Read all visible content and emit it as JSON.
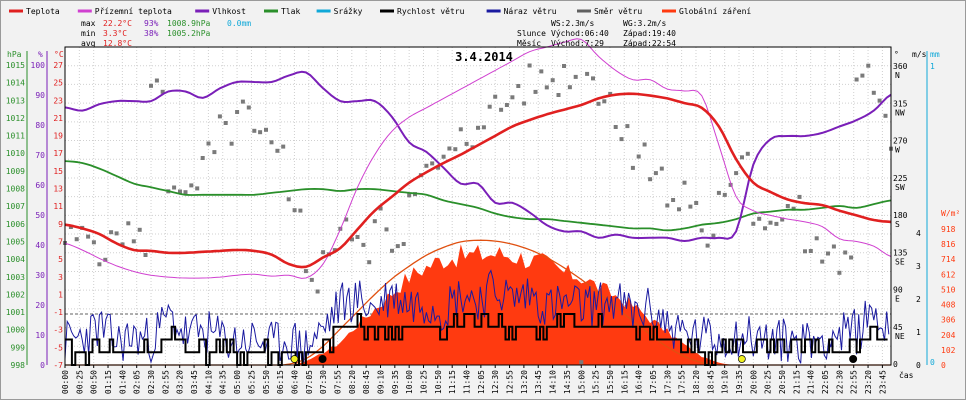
{
  "chart_data": {
    "type": "line",
    "title": "3.4.2014",
    "legend": [
      {
        "label": "Teplota",
        "color": "#e02020"
      },
      {
        "label": "Přízemní teplota",
        "color": "#d040d0"
      },
      {
        "label": "Vlhkost",
        "color": "#7a1fb8"
      },
      {
        "label": "Tlak",
        "color": "#2a8f2a"
      },
      {
        "label": "Srážky",
        "color": "#10a8d8"
      },
      {
        "label": "Rychlost větru",
        "color": "#000000"
      },
      {
        "label": "Náraz větru",
        "color": "#1a1aa0"
      },
      {
        "label": "Směr větru",
        "color": "#606060"
      },
      {
        "label": "Globální záření",
        "color": "#ff3a10"
      }
    ],
    "stats": {
      "max": {
        "label": "max",
        "temp": "22.2°C",
        "hum": "93%",
        "press": "1008.9hPa",
        "rain": "0.0mm"
      },
      "min": {
        "label": "min",
        "temp": "3.3°C",
        "hum": "38%",
        "press": "1005.2hPa"
      },
      "avg": {
        "label": "avg",
        "temp": "12.8°C"
      }
    },
    "info": {
      "ws": "WS:2.3m/s",
      "wg": "WG:3.2m/s",
      "sun_label": "Slunce",
      "sun_rise": "Východ:06:40",
      "sun_set": "Západ:19:40",
      "moon_label": "Měsíc",
      "moon_rise": "Východ:7:29",
      "moon_set": "Západ:22:54"
    },
    "axes": {
      "hpa": {
        "unit": "hPa",
        "ticks": [
          "1015",
          "1014",
          "1013",
          "1012",
          "1011",
          "1010",
          "1009",
          "1008",
          "1007",
          "1006",
          "1005",
          "1004",
          "1003",
          "1002",
          "1001",
          "1000",
          "999",
          "998"
        ]
      },
      "pct": {
        "unit": "%",
        "ticks": [
          "100",
          "90",
          "80",
          "70",
          "60",
          "50",
          "40",
          "30",
          "20",
          "10",
          "0"
        ]
      },
      "temp": {
        "unit": "°C",
        "ticks": [
          "27",
          "25",
          "23",
          "21",
          "19",
          "17",
          "15",
          "13",
          "11",
          "9",
          "7",
          "5",
          "3",
          "1",
          "-1",
          "-3",
          "-5",
          "-7"
        ]
      },
      "dir": {
        "unit": "°",
        "ticks": [
          {
            "deg": "360",
            "dir": "N"
          },
          {
            "deg": "315",
            "dir": "NW"
          },
          {
            "deg": "270",
            "dir": "W"
          },
          {
            "deg": "225",
            "dir": "SW"
          },
          {
            "deg": "180",
            "dir": "S"
          },
          {
            "deg": "135",
            "dir": "SE"
          },
          {
            "deg": "90",
            "dir": "E"
          },
          {
            "deg": "45",
            "dir": "NE"
          },
          {
            "deg": "0",
            "dir": ""
          }
        ]
      },
      "wind": {
        "unit": "m/s",
        "ticks": [
          "4",
          "3",
          "2",
          "1",
          "0"
        ]
      },
      "rain": {
        "unit": "mm",
        "ticks": [
          "1",
          "0"
        ]
      },
      "rad": {
        "unit": "W/m²",
        "ticks": [
          "918",
          "816",
          "714",
          "612",
          "510",
          "408",
          "306",
          "204",
          "102",
          "0"
        ]
      },
      "x_unit": "čas",
      "x_ticks": [
        "00:00",
        "00:25",
        "00:50",
        "01:15",
        "01:40",
        "02:05",
        "02:30",
        "02:55",
        "03:20",
        "03:45",
        "04:10",
        "04:35",
        "05:00",
        "05:25",
        "05:50",
        "06:15",
        "06:40",
        "07:05",
        "07:30",
        "07:55",
        "08:20",
        "08:45",
        "09:10",
        "09:35",
        "10:00",
        "10:25",
        "10:50",
        "11:15",
        "11:40",
        "12:05",
        "12:30",
        "12:55",
        "13:20",
        "13:45",
        "14:10",
        "14:35",
        "15:00",
        "15:25",
        "15:50",
        "16:15",
        "16:40",
        "17:05",
        "17:30",
        "17:55",
        "18:20",
        "18:45",
        "19:10",
        "19:35",
        "20:00",
        "20:25",
        "20:50",
        "21:15",
        "21:40",
        "22:05",
        "22:30",
        "22:55",
        "23:20",
        "23:45"
      ]
    },
    "series": {
      "time_h": [
        0,
        0.5,
        1,
        1.5,
        2,
        2.5,
        3,
        3.5,
        4,
        4.5,
        5,
        5.5,
        6,
        6.5,
        7,
        7.5,
        8,
        8.5,
        9,
        9.5,
        10,
        10.5,
        11,
        11.5,
        12,
        12.5,
        13,
        13.5,
        14,
        14.5,
        15,
        15.5,
        16,
        16.5,
        17,
        17.5,
        18,
        18.5,
        19,
        19.5,
        20,
        20.5,
        21,
        21.5,
        22,
        22.5,
        23,
        23.5,
        24
      ],
      "temperature_c": [
        8,
        7.6,
        7,
        6,
        5.3,
        5.2,
        5.0,
        5.0,
        5.1,
        5.2,
        5.3,
        5.2,
        4.8,
        3.8,
        3.5,
        4.5,
        5.5,
        7.5,
        9.5,
        11,
        12.5,
        13.6,
        14.6,
        15.5,
        16.5,
        17.5,
        18.5,
        19.2,
        19.8,
        20.3,
        20.8,
        21.5,
        21.9,
        22,
        21.8,
        21.5,
        21,
        20.5,
        18.5,
        15,
        12.5,
        11.5,
        10.7,
        10.3,
        10.1,
        9.5,
        9.0,
        8.5,
        8.3
      ],
      "ground_temp_c": [
        6,
        5.3,
        4.4,
        3.6,
        3.0,
        2.6,
        2.4,
        2.3,
        2.3,
        2.4,
        2.6,
        2.7,
        2.5,
        2.6,
        2.3,
        3.8,
        7.5,
        12,
        15.5,
        18,
        19.5,
        20.5,
        21.5,
        22.5,
        23.5,
        24.5,
        25.5,
        26.5,
        27,
        27.5,
        27.8,
        26,
        24.5,
        23.5,
        23.5,
        22.5,
        22.3,
        21.8,
        16.5,
        11,
        9.5,
        9.0,
        8.6,
        8.3,
        7.8,
        6.5,
        6.2,
        5.7,
        4.6
      ],
      "humidity_pct": [
        81,
        80,
        82,
        83,
        83,
        83,
        86,
        86,
        84,
        87,
        89,
        89,
        89,
        91,
        92,
        87,
        83,
        83,
        83,
        78,
        70,
        67,
        62,
        57,
        57,
        51,
        51,
        48,
        44,
        42,
        42,
        40,
        41,
        40,
        40,
        40,
        39,
        40,
        40,
        42,
        63,
        71,
        72,
        72,
        73,
        75,
        77,
        80,
        85
      ],
      "pressure_hpa": [
        1008.9,
        1008.8,
        1008.5,
        1008.1,
        1007.7,
        1007.5,
        1007.3,
        1007.1,
        1007.1,
        1007.1,
        1007.1,
        1007.1,
        1007.2,
        1007.3,
        1007.4,
        1007.4,
        1007.3,
        1007.4,
        1007.4,
        1007.3,
        1007.2,
        1007.1,
        1006.8,
        1006.6,
        1006.4,
        1006.1,
        1005.9,
        1005.8,
        1005.8,
        1005.7,
        1005.6,
        1005.5,
        1005.4,
        1005.3,
        1005.3,
        1005.2,
        1005.3,
        1005.5,
        1005.6,
        1005.8,
        1006.1,
        1006.2,
        1006.3,
        1006.3,
        1006.4,
        1006.5,
        1006.4,
        1006.6,
        1006.8
      ],
      "wind_speed_ms": [
        0.5,
        0.5,
        0.7,
        0.4,
        0.5,
        0.5,
        1.2,
        0.7,
        0.6,
        0.5,
        0.4,
        0.5,
        0.5,
        0.5,
        0.3,
        0.6,
        1.5,
        1.6,
        1.3,
        1.5,
        1.3,
        1.4,
        1.3,
        1.8,
        1.5,
        1.8,
        1.5,
        1.6,
        1.4,
        1.6,
        1.4,
        1.6,
        1.6,
        1.3,
        1.4,
        1.0,
        0.7,
        0.5,
        0.6,
        0.7,
        0.8,
        0.6,
        0.6,
        0.5,
        0.6,
        0.7,
        0.8,
        1.3,
        0.7
      ],
      "wind_gust_ms": [
        0.9,
        1.1,
        1.5,
        0.9,
        1.1,
        1.0,
        1.9,
        1.2,
        1.3,
        1.1,
        0.9,
        1.0,
        0.8,
        1.0,
        0.7,
        1.4,
        2.4,
        2.6,
        2.2,
        2.8,
        2.4,
        2.5,
        2.2,
        2.8,
        2.6,
        3.0,
        2.6,
        2.8,
        2.3,
        2.4,
        2.3,
        2.4,
        2.5,
        2.0,
        2.2,
        1.6,
        1.2,
        1.1,
        1.0,
        1.2,
        1.1,
        0.9,
        1.0,
        0.9,
        1.1,
        1.2,
        1.3,
        2.2,
        1.0
      ],
      "radiation_wm2": [
        0,
        0,
        0,
        0,
        0,
        0,
        0,
        0,
        0,
        0,
        0,
        0,
        0,
        0,
        25,
        85,
        160,
        280,
        390,
        500,
        610,
        680,
        735,
        755,
        765,
        770,
        760,
        730,
        700,
        640,
        610,
        540,
        480,
        410,
        320,
        230,
        140,
        60,
        15,
        0,
        0,
        0,
        0,
        0,
        0,
        0,
        0,
        0,
        0
      ],
      "clear_sky_wm2": [
        0,
        0,
        0,
        0,
        0,
        0,
        0,
        0,
        0,
        0,
        0,
        0,
        0,
        5,
        40,
        120,
        230,
        340,
        450,
        550,
        630,
        700,
        750,
        785,
        795,
        790,
        770,
        735,
        685,
        620,
        545,
        460,
        370,
        280,
        195,
        115,
        55,
        15,
        0,
        0,
        0,
        0,
        0,
        0,
        0,
        0,
        0,
        0,
        0
      ],
      "wind_dir_deg": [
        150,
        152,
        140,
        160,
        148,
        330,
        220,
        200,
        250,
        280,
        300,
        270,
        250,
        200,
        100,
        140,
        160,
        140,
        170,
        150,
        220,
        230,
        250,
        270,
        300,
        310,
        330,
        340,
        340,
        350,
        360,
        320,
        290,
        250,
        240,
        190,
        200,
        150,
        210,
        240,
        160,
        180,
        200,
        150,
        130,
        120,
        350,
        310,
        260
      ]
    }
  }
}
